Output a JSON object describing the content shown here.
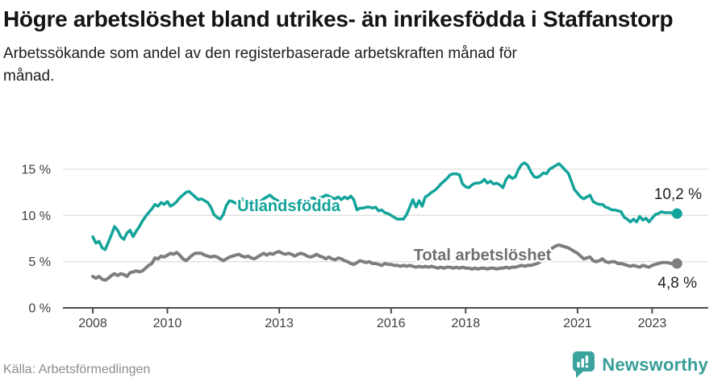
{
  "header": {
    "title": "Högre arbetslöshet bland utrikes- än inrikesfödda i Staffanstorp",
    "subtitle": "Arbetssökande som andel av den registerbaserade arbetskraften månad för månad."
  },
  "footer": {
    "source": "Källa: Arbetsförmedlingen",
    "brand": "Newsworthy"
  },
  "colors": {
    "accent_teal": "#12a39a",
    "series_gray": "#7e7e7e",
    "gray_label": "#6f6f6f",
    "grid": "#e0e0e0",
    "axis": "#4d4d4d",
    "tick_label": "#3d3d3d",
    "value_label": "#1f1f1f",
    "source_text": "#8c8c8c",
    "logo_teal": "#3aa49c"
  },
  "chart_data": {
    "type": "line",
    "title": "Högre arbetslöshet bland utrikes- än inrikesfödda i Staffanstorp",
    "subtitle": "Arbetssökande som andel av den registerbaserade arbetskraften månad för månad.",
    "xlabel": "",
    "ylabel": "",
    "x_start": "2008-01",
    "x_step_months": 1,
    "x_ticks": [
      2008,
      2010,
      2013,
      2016,
      2018,
      2021,
      2023
    ],
    "x_tick_labels": [
      "2008",
      "2010",
      "2013",
      "2016",
      "2018",
      "2021",
      "2023"
    ],
    "y_ticks": [
      0,
      5,
      10,
      15
    ],
    "y_tick_labels": [
      "0 %",
      "5 %",
      "10 %",
      "15 %"
    ],
    "ylim": [
      0,
      16.5
    ],
    "grid": "horizontal",
    "legend_position": "inline-labels",
    "series": [
      {
        "name": "Utlandsfödda",
        "color": "#12a39a",
        "end_label": "10,2 %",
        "final_value": 10.2,
        "values": [
          7.7,
          7.0,
          7.2,
          6.5,
          6.3,
          7.1,
          7.9,
          8.8,
          8.4,
          7.7,
          7.4,
          8.1,
          8.4,
          7.7,
          8.3,
          8.8,
          9.4,
          9.9,
          10.3,
          10.7,
          11.2,
          11.0,
          11.4,
          11.2,
          11.5,
          11.0,
          11.2,
          11.5,
          11.9,
          12.2,
          12.5,
          12.6,
          12.3,
          12.0,
          11.7,
          11.8,
          11.6,
          11.4,
          10.9,
          10.1,
          9.8,
          9.6,
          10.1,
          11.1,
          11.6,
          11.5,
          11.3,
          11.6,
          11.8,
          11.5,
          11.3,
          11.6,
          11.4,
          11.7,
          11.5,
          11.8,
          12.0,
          12.2,
          11.9,
          11.7,
          11.5,
          11.3,
          11.6,
          11.4,
          11.2,
          11.4,
          11.6,
          11.5,
          11.7,
          11.6,
          11.8,
          11.9,
          11.7,
          11.9,
          12.0,
          12.2,
          12.1,
          11.9,
          11.8,
          12.0,
          11.7,
          12.0,
          11.8,
          12.1,
          11.7,
          10.6,
          10.8,
          10.8,
          10.9,
          10.9,
          10.8,
          10.9,
          10.5,
          10.6,
          10.3,
          10.2,
          10.0,
          9.8,
          9.6,
          9.6,
          9.6,
          10.1,
          10.9,
          11.7,
          10.9,
          11.6,
          11.0,
          12.0,
          12.2,
          12.5,
          12.7,
          13.0,
          13.4,
          13.7,
          14.0,
          14.4,
          14.5,
          14.5,
          14.4,
          13.4,
          13.1,
          13.0,
          13.3,
          13.5,
          13.5,
          13.6,
          13.9,
          13.5,
          13.7,
          13.4,
          13.5,
          13.3,
          13.0,
          13.9,
          14.3,
          14.0,
          14.2,
          15.0,
          15.5,
          15.7,
          15.4,
          14.7,
          14.2,
          14.1,
          14.3,
          14.6,
          14.5,
          15.0,
          15.2,
          15.4,
          15.6,
          15.3,
          14.9,
          14.6,
          13.7,
          12.8,
          12.4,
          12.0,
          11.8,
          12.0,
          12.2,
          11.5,
          11.3,
          11.2,
          11.2,
          10.9,
          10.8,
          10.6,
          10.6,
          10.5,
          10.4,
          9.8,
          9.6,
          9.3,
          9.6,
          9.3,
          9.9,
          9.5,
          9.7,
          9.3,
          9.7,
          10.1,
          10.2,
          10.4,
          10.3,
          10.3,
          10.3,
          10.2,
          10.2
        ]
      },
      {
        "name": "Total arbetslöshet",
        "color": "#7e7e7e",
        "end_label": "4,8 %",
        "final_value": 4.8,
        "values": [
          3.4,
          3.2,
          3.4,
          3.1,
          3.0,
          3.2,
          3.5,
          3.7,
          3.5,
          3.7,
          3.6,
          3.4,
          3.8,
          3.9,
          4.0,
          3.9,
          4.0,
          4.3,
          4.6,
          4.8,
          5.4,
          5.3,
          5.6,
          5.5,
          5.7,
          5.9,
          5.8,
          6.0,
          5.7,
          5.3,
          5.1,
          5.4,
          5.7,
          5.9,
          5.9,
          5.9,
          5.7,
          5.6,
          5.5,
          5.6,
          5.5,
          5.3,
          5.1,
          5.3,
          5.5,
          5.6,
          5.7,
          5.8,
          5.6,
          5.5,
          5.6,
          5.4,
          5.3,
          5.5,
          5.7,
          5.9,
          5.7,
          5.9,
          5.8,
          6.0,
          6.1,
          5.9,
          5.8,
          5.9,
          5.8,
          5.6,
          5.8,
          5.9,
          5.8,
          5.6,
          5.5,
          5.6,
          5.8,
          5.6,
          5.5,
          5.3,
          5.5,
          5.3,
          5.2,
          5.4,
          5.3,
          5.1,
          5.0,
          4.8,
          4.7,
          4.9,
          5.1,
          5.0,
          4.9,
          5.0,
          4.8,
          4.8,
          4.7,
          4.6,
          4.8,
          4.7,
          4.7,
          4.6,
          4.6,
          4.5,
          4.6,
          4.5,
          4.6,
          4.5,
          4.4,
          4.5,
          4.4,
          4.5,
          4.4,
          4.5,
          4.4,
          4.3,
          4.4,
          4.3,
          4.4,
          4.4,
          4.3,
          4.4,
          4.3,
          4.4,
          4.3,
          4.3,
          4.2,
          4.3,
          4.2,
          4.3,
          4.3,
          4.2,
          4.3,
          4.3,
          4.2,
          4.3,
          4.3,
          4.4,
          4.3,
          4.4,
          4.4,
          4.5,
          4.6,
          4.5,
          4.6,
          4.6,
          4.7,
          4.8,
          5.0,
          5.2,
          5.6,
          6.2,
          6.5,
          6.7,
          6.8,
          6.7,
          6.6,
          6.5,
          6.3,
          6.1,
          5.9,
          5.6,
          5.3,
          5.4,
          5.5,
          5.1,
          5.0,
          5.1,
          5.3,
          5.0,
          4.9,
          5.0,
          5.0,
          4.8,
          4.8,
          4.7,
          4.6,
          4.5,
          4.6,
          4.5,
          4.4,
          4.6,
          4.5,
          4.4,
          4.6,
          4.7,
          4.8,
          4.9,
          4.9,
          4.9,
          4.8,
          4.8,
          4.8
        ]
      }
    ]
  }
}
